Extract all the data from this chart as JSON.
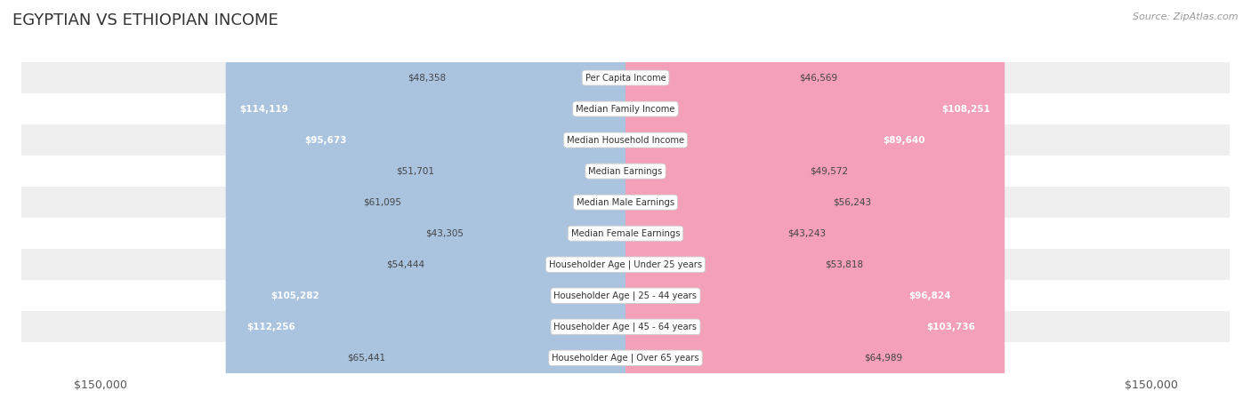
{
  "title": "EGYPTIAN VS ETHIOPIAN INCOME",
  "source": "Source: ZipAtlas.com",
  "categories": [
    "Per Capita Income",
    "Median Family Income",
    "Median Household Income",
    "Median Earnings",
    "Median Male Earnings",
    "Median Female Earnings",
    "Householder Age | Under 25 years",
    "Householder Age | 25 - 44 years",
    "Householder Age | 45 - 64 years",
    "Householder Age | Over 65 years"
  ],
  "egyptian_values": [
    48358,
    114119,
    95673,
    51701,
    61095,
    43305,
    54444,
    105282,
    112256,
    65441
  ],
  "ethiopian_values": [
    46569,
    108251,
    89640,
    49572,
    56243,
    43243,
    53818,
    96824,
    103736,
    64989
  ],
  "egyptian_labels": [
    "$48,358",
    "$114,119",
    "$95,673",
    "$51,701",
    "$61,095",
    "$43,305",
    "$54,444",
    "$105,282",
    "$112,256",
    "$65,441"
  ],
  "ethiopian_labels": [
    "$46,569",
    "$108,251",
    "$89,640",
    "$49,572",
    "$56,243",
    "$43,243",
    "$53,818",
    "$96,824",
    "$103,736",
    "$64,989"
  ],
  "max_value": 150000,
  "egyptian_color": "#aac4e0",
  "ethiopian_color": "#f4a0b8",
  "row_bg_light": "#efefef",
  "row_bg_white": "#ffffff",
  "title_color": "#333333",
  "text_color_dark": "#444444",
  "text_color_white": "#ffffff",
  "background_color": "#ffffff",
  "legend_egyptian_color": "#7bafd4",
  "legend_ethiopian_color": "#f07090",
  "large_threshold": 80000
}
